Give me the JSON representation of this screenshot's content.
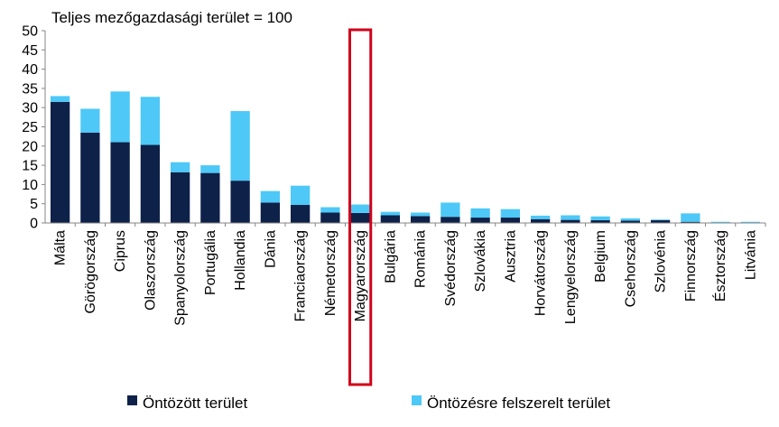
{
  "chart_data": {
    "type": "bar",
    "stacked": true,
    "title": "Teljes mezőgazdasági terület = 100",
    "xlabel": "",
    "ylabel": "",
    "ylim": [
      0,
      50
    ],
    "yticks": [
      0,
      5,
      10,
      15,
      20,
      25,
      30,
      35,
      40,
      45,
      50
    ],
    "grid": false,
    "legend_position": "bottom",
    "highlight_category": "Magyarország",
    "highlight_color": "#d0021b",
    "categories": [
      "Málta",
      "Görögország",
      "Ciprus",
      "Olaszország",
      "Spanyolország",
      "Portugália",
      "Hollandia",
      "Dánia",
      "Franciaország",
      "Németország",
      "Magyarország",
      "Bulgária",
      "Románia",
      "Svédország",
      "Szlovákia",
      "Ausztria",
      "Horvátország",
      "Lengyelország",
      "Belgium",
      "Csehország",
      "Szlovénia",
      "Finnország",
      "Észtország",
      "Litvánia"
    ],
    "series": [
      {
        "name": "Öntözött terület",
        "color": "#0d2149",
        "values": [
          31.5,
          23.5,
          21.0,
          20.3,
          13.2,
          13.0,
          11.0,
          5.3,
          4.7,
          2.7,
          2.6,
          2.0,
          1.8,
          1.6,
          1.4,
          1.4,
          1.0,
          0.8,
          0.7,
          0.6,
          0.7,
          0.3,
          0.1,
          0.1
        ]
      },
      {
        "name": "Öntözésre felszerelt terület",
        "color": "#4dc8f7",
        "values": [
          1.5,
          6.2,
          13.2,
          12.5,
          2.6,
          2.0,
          18.1,
          3.0,
          5.0,
          1.4,
          2.2,
          0.9,
          0.9,
          3.7,
          2.4,
          2.2,
          0.9,
          1.2,
          1.0,
          0.6,
          0.2,
          2.2,
          0.2,
          0.2
        ]
      }
    ]
  }
}
